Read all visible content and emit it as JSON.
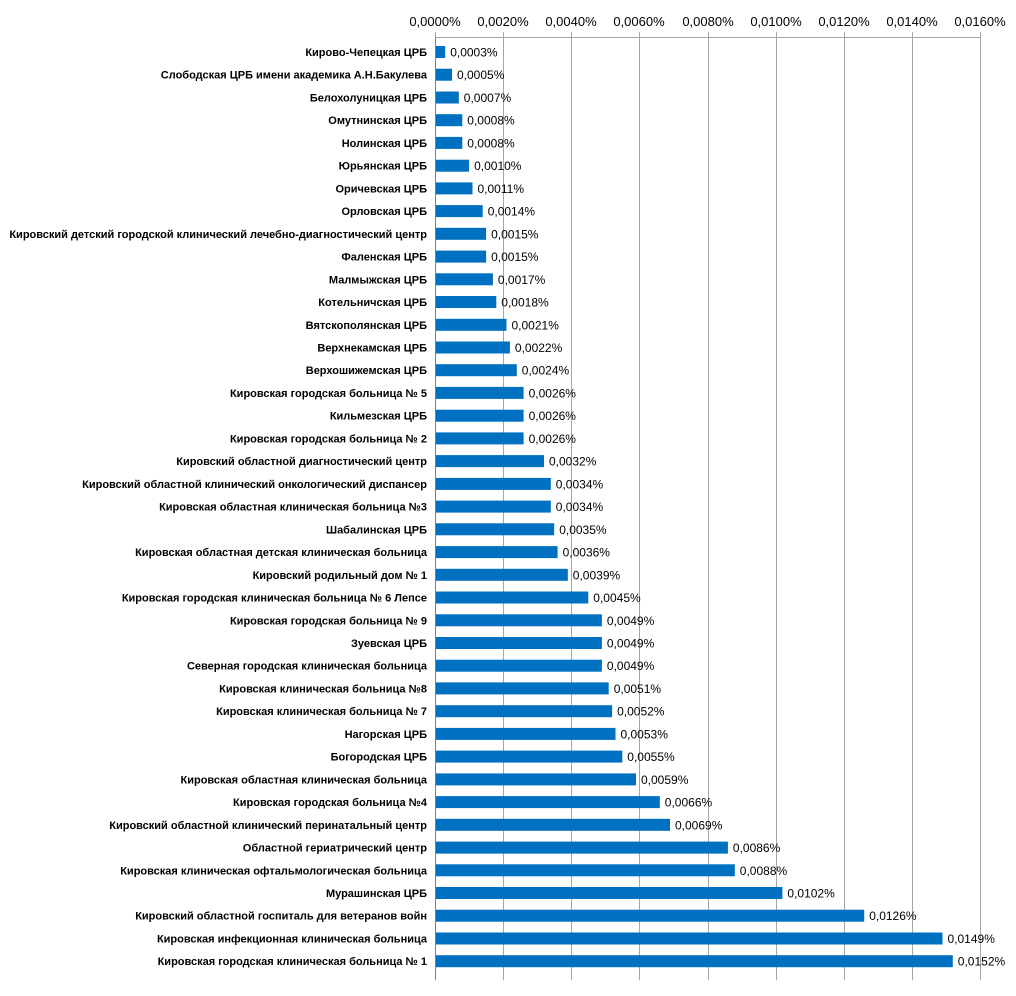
{
  "chart_data": {
    "type": "bar",
    "orientation": "horizontal",
    "x_axis_position": "top",
    "grid": true,
    "xlim": [
      0,
      0.016
    ],
    "x_ticks": [
      0,
      0.002,
      0.004,
      0.006,
      0.008,
      0.01,
      0.012,
      0.014,
      0.016
    ],
    "x_tick_labels": [
      "0,0000%",
      "0,0020%",
      "0,0040%",
      "0,0060%",
      "0,0080%",
      "0,0100%",
      "0,0120%",
      "0,0140%",
      "0,0160%"
    ],
    "bar_color": "#0070C0",
    "grid_color": "#A6A6A6",
    "categories": [
      "Кирово-Чепецкая ЦРБ",
      "Слободская ЦРБ имени академика А.Н.Бакулева",
      "Белохолуницкая ЦРБ",
      "Омутнинская ЦРБ",
      "Нолинская ЦРБ",
      "Юрьянская ЦРБ",
      "Оричевская ЦРБ",
      "Орловская ЦРБ",
      "Кировский детский городской клинический лечебно-диагностический центр",
      "Фаленская ЦРБ",
      "Малмыжская ЦРБ",
      "Котельничская ЦРБ",
      "Вятскополянская ЦРБ",
      "Верхнекамская ЦРБ",
      "Верхошижемская ЦРБ",
      "Кировская городская больница № 5",
      "Кильмезская ЦРБ",
      "Кировская городская больница № 2",
      "Кировский областной диагностический центр",
      "Кировский областной клинический онкологический диспансер",
      "Кировская областная клиническая больница №3",
      "Шабалинская ЦРБ",
      "Кировская областная детская клиническая больница",
      "Кировский родильный дом № 1",
      "Кировская городская клиническая больница № 6 Лепсе",
      "Кировская городская больница № 9",
      "Зуевская ЦРБ",
      "Северная городская клиническая больница",
      "Кировская клиническая больница №8",
      "Кировская клиническая больница № 7",
      "Нагорская ЦРБ",
      "Богородская ЦРБ",
      "Кировская областная клиническая больница",
      "Кировская городская больница №4",
      "Кировский областной клинический перинатальный центр",
      "Областной гериатрический центр",
      "Кировская клиническая офтальмологическая больница",
      "Мурашинская ЦРБ",
      "Кировский областной госпиталь для ветеранов войн",
      "Кировская инфекционная клиническая больница",
      "Кировская городская клиническая больница № 1"
    ],
    "values": [
      0.0003,
      0.0005,
      0.0007,
      0.0008,
      0.0008,
      0.001,
      0.0011,
      0.0014,
      0.0015,
      0.0015,
      0.0017,
      0.0018,
      0.0021,
      0.0022,
      0.0024,
      0.0026,
      0.0026,
      0.0026,
      0.0032,
      0.0034,
      0.0034,
      0.0035,
      0.0036,
      0.0039,
      0.0045,
      0.0049,
      0.0049,
      0.0049,
      0.0051,
      0.0052,
      0.0053,
      0.0055,
      0.0059,
      0.0066,
      0.0069,
      0.0086,
      0.0088,
      0.0102,
      0.0126,
      0.0149,
      0.0152
    ],
    "value_labels": [
      "0,0003%",
      "0,0005%",
      "0,0007%",
      "0,0008%",
      "0,0008%",
      "0,0010%",
      "0,0011%",
      "0,0014%",
      "0,0015%",
      "0,0015%",
      "0,0017%",
      "0,0018%",
      "0,0021%",
      "0,0022%",
      "0,0024%",
      "0,0026%",
      "0,0026%",
      "0,0026%",
      "0,0032%",
      "0,0034%",
      "0,0034%",
      "0,0035%",
      "0,0036%",
      "0,0039%",
      "0,0045%",
      "0,0049%",
      "0,0049%",
      "0,0049%",
      "0,0051%",
      "0,0052%",
      "0,0053%",
      "0,0055%",
      "0,0059%",
      "0,0066%",
      "0,0069%",
      "0,0086%",
      "0,0088%",
      "0,0102%",
      "0,0126%",
      "0,0149%",
      "0,0152%"
    ]
  }
}
